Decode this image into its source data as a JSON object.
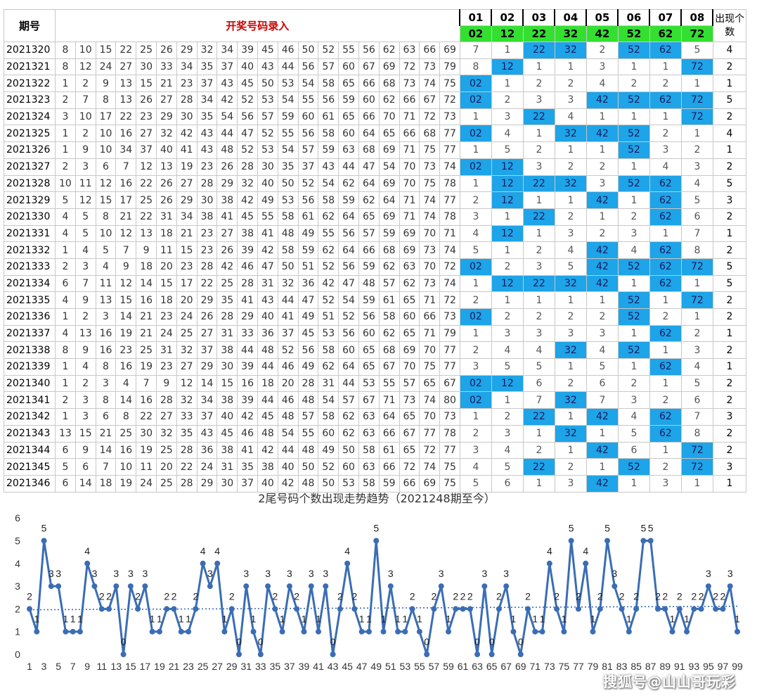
{
  "table": {
    "header": {
      "period_label": "期号",
      "entry_label": "开奖号码录入",
      "col_labels": [
        "01",
        "02",
        "03",
        "04",
        "05",
        "06",
        "07",
        "08"
      ],
      "targets": [
        "02",
        "12",
        "22",
        "32",
        "42",
        "52",
        "62",
        "72"
      ],
      "count_label": "出现个数"
    },
    "colors": {
      "hit": "#1ea4e8",
      "target_bg": "#33e030",
      "entry_label": "#cc0000"
    },
    "rows": [
      {
        "period": "2021320",
        "nums": [
          "8",
          "10",
          "15",
          "22",
          "25",
          "26",
          "29",
          "32",
          "34",
          "39",
          "45",
          "46",
          "50",
          "52",
          "55",
          "56",
          "62",
          "63",
          "66",
          "69"
        ],
        "cells": [
          "7",
          "1",
          "22",
          "32",
          "2",
          "52",
          "62",
          "5"
        ],
        "count": "4"
      },
      {
        "period": "2021321",
        "nums": [
          "8",
          "12",
          "24",
          "27",
          "30",
          "33",
          "34",
          "35",
          "37",
          "40",
          "43",
          "44",
          "56",
          "57",
          "60",
          "67",
          "69",
          "72",
          "73",
          "79"
        ],
        "cells": [
          "8",
          "12",
          "1",
          "1",
          "3",
          "1",
          "1",
          "72"
        ],
        "count": "2"
      },
      {
        "period": "2021322",
        "nums": [
          "1",
          "2",
          "9",
          "13",
          "15",
          "21",
          "23",
          "37",
          "43",
          "45",
          "50",
          "53",
          "54",
          "58",
          "65",
          "66",
          "68",
          "73",
          "74",
          "75"
        ],
        "cells": [
          "02",
          "1",
          "2",
          "2",
          "4",
          "2",
          "2",
          "1"
        ],
        "count": "1"
      },
      {
        "period": "2021323",
        "nums": [
          "2",
          "7",
          "8",
          "13",
          "26",
          "27",
          "28",
          "34",
          "42",
          "52",
          "53",
          "54",
          "55",
          "56",
          "59",
          "60",
          "62",
          "66",
          "67",
          "72"
        ],
        "cells": [
          "02",
          "2",
          "3",
          "3",
          "42",
          "52",
          "62",
          "72"
        ],
        "count": "5"
      },
      {
        "period": "2021324",
        "nums": [
          "3",
          "10",
          "17",
          "22",
          "23",
          "29",
          "30",
          "35",
          "54",
          "56",
          "57",
          "59",
          "60",
          "61",
          "65",
          "66",
          "70",
          "71",
          "72",
          "73"
        ],
        "cells": [
          "1",
          "3",
          "22",
          "4",
          "1",
          "1",
          "1",
          "72"
        ],
        "count": "2"
      },
      {
        "period": "2021325",
        "nums": [
          "1",
          "2",
          "10",
          "16",
          "27",
          "32",
          "42",
          "43",
          "44",
          "47",
          "52",
          "55",
          "56",
          "58",
          "60",
          "64",
          "65",
          "66",
          "68",
          "77"
        ],
        "cells": [
          "02",
          "4",
          "1",
          "32",
          "42",
          "52",
          "2",
          "1"
        ],
        "count": "4"
      },
      {
        "period": "2021326",
        "nums": [
          "1",
          "9",
          "10",
          "34",
          "37",
          "40",
          "41",
          "43",
          "48",
          "52",
          "53",
          "54",
          "57",
          "59",
          "63",
          "68",
          "69",
          "71",
          "75",
          "77"
        ],
        "cells": [
          "1",
          "5",
          "2",
          "1",
          "1",
          "52",
          "3",
          "2"
        ],
        "count": "1"
      },
      {
        "period": "2021327",
        "nums": [
          "2",
          "3",
          "6",
          "7",
          "12",
          "13",
          "19",
          "23",
          "26",
          "28",
          "30",
          "35",
          "37",
          "43",
          "44",
          "47",
          "54",
          "70",
          "73",
          "74"
        ],
        "cells": [
          "02",
          "12",
          "3",
          "2",
          "2",
          "1",
          "4",
          "3"
        ],
        "count": "2"
      },
      {
        "period": "2021328",
        "nums": [
          "10",
          "11",
          "12",
          "16",
          "22",
          "26",
          "27",
          "28",
          "29",
          "32",
          "40",
          "50",
          "52",
          "54",
          "62",
          "64",
          "69",
          "70",
          "75",
          "78"
        ],
        "cells": [
          "1",
          "12",
          "22",
          "32",
          "3",
          "52",
          "62",
          "4"
        ],
        "count": "5"
      },
      {
        "period": "2021329",
        "nums": [
          "5",
          "12",
          "15",
          "17",
          "25",
          "26",
          "29",
          "30",
          "38",
          "42",
          "49",
          "53",
          "56",
          "58",
          "59",
          "62",
          "64",
          "71",
          "74",
          "77"
        ],
        "cells": [
          "2",
          "12",
          "1",
          "1",
          "42",
          "1",
          "62",
          "5"
        ],
        "count": "3"
      },
      {
        "period": "2021330",
        "nums": [
          "4",
          "5",
          "8",
          "21",
          "22",
          "31",
          "34",
          "38",
          "41",
          "45",
          "55",
          "58",
          "61",
          "62",
          "64",
          "65",
          "69",
          "71",
          "74",
          "78"
        ],
        "cells": [
          "3",
          "1",
          "22",
          "2",
          "1",
          "2",
          "62",
          "6"
        ],
        "count": "2"
      },
      {
        "period": "2021331",
        "nums": [
          "4",
          "5",
          "10",
          "12",
          "13",
          "18",
          "21",
          "23",
          "27",
          "38",
          "41",
          "48",
          "49",
          "55",
          "56",
          "57",
          "59",
          "69",
          "70",
          "71"
        ],
        "cells": [
          "4",
          "12",
          "1",
          "3",
          "2",
          "3",
          "1",
          "7"
        ],
        "count": "1"
      },
      {
        "period": "2021332",
        "nums": [
          "1",
          "4",
          "5",
          "7",
          "9",
          "11",
          "15",
          "23",
          "26",
          "39",
          "42",
          "58",
          "59",
          "62",
          "64",
          "66",
          "68",
          "69",
          "73",
          "74"
        ],
        "cells": [
          "5",
          "1",
          "2",
          "4",
          "42",
          "4",
          "62",
          "8"
        ],
        "count": "2"
      },
      {
        "period": "2021333",
        "nums": [
          "2",
          "3",
          "4",
          "9",
          "18",
          "20",
          "23",
          "28",
          "42",
          "46",
          "47",
          "50",
          "51",
          "52",
          "56",
          "59",
          "62",
          "63",
          "70",
          "72"
        ],
        "cells": [
          "02",
          "2",
          "3",
          "5",
          "42",
          "52",
          "62",
          "72"
        ],
        "count": "5"
      },
      {
        "period": "2021334",
        "nums": [
          "6",
          "7",
          "11",
          "12",
          "14",
          "15",
          "17",
          "22",
          "25",
          "28",
          "31",
          "32",
          "36",
          "42",
          "47",
          "48",
          "57",
          "62",
          "73",
          "74"
        ],
        "cells": [
          "1",
          "12",
          "22",
          "32",
          "42",
          "1",
          "62",
          "1"
        ],
        "count": "5"
      },
      {
        "period": "2021335",
        "nums": [
          "4",
          "9",
          "13",
          "15",
          "16",
          "18",
          "20",
          "29",
          "35",
          "41",
          "43",
          "44",
          "47",
          "52",
          "54",
          "59",
          "61",
          "65",
          "71",
          "72"
        ],
        "cells": [
          "2",
          "1",
          "1",
          "1",
          "1",
          "52",
          "1",
          "72"
        ],
        "count": "2"
      },
      {
        "period": "2021336",
        "nums": [
          "1",
          "2",
          "3",
          "14",
          "21",
          "23",
          "24",
          "26",
          "28",
          "29",
          "40",
          "41",
          "49",
          "51",
          "52",
          "56",
          "58",
          "60",
          "66",
          "73"
        ],
        "cells": [
          "02",
          "2",
          "2",
          "2",
          "2",
          "52",
          "2",
          "1"
        ],
        "count": "2"
      },
      {
        "period": "2021337",
        "nums": [
          "4",
          "13",
          "16",
          "19",
          "21",
          "24",
          "25",
          "27",
          "31",
          "33",
          "36",
          "37",
          "45",
          "53",
          "56",
          "60",
          "62",
          "65",
          "71",
          "79"
        ],
        "cells": [
          "1",
          "3",
          "3",
          "3",
          "3",
          "1",
          "62",
          "2"
        ],
        "count": "1"
      },
      {
        "period": "2021338",
        "nums": [
          "8",
          "9",
          "16",
          "23",
          "25",
          "31",
          "32",
          "37",
          "38",
          "44",
          "48",
          "52",
          "56",
          "58",
          "60",
          "65",
          "68",
          "69",
          "70",
          "77"
        ],
        "cells": [
          "2",
          "4",
          "4",
          "32",
          "4",
          "52",
          "1",
          "3"
        ],
        "count": "2"
      },
      {
        "period": "2021339",
        "nums": [
          "1",
          "4",
          "8",
          "16",
          "19",
          "23",
          "27",
          "29",
          "30",
          "39",
          "44",
          "46",
          "49",
          "62",
          "64",
          "65",
          "67",
          "70",
          "75",
          "77"
        ],
        "cells": [
          "3",
          "5",
          "5",
          "1",
          "5",
          "1",
          "62",
          "4"
        ],
        "count": "1"
      },
      {
        "period": "2021340",
        "nums": [
          "1",
          "2",
          "3",
          "4",
          "7",
          "9",
          "12",
          "14",
          "15",
          "16",
          "18",
          "20",
          "28",
          "31",
          "44",
          "53",
          "55",
          "57",
          "65",
          "67"
        ],
        "cells": [
          "02",
          "12",
          "6",
          "2",
          "6",
          "2",
          "1",
          "5"
        ],
        "count": "2"
      },
      {
        "period": "2021341",
        "nums": [
          "2",
          "3",
          "8",
          "14",
          "16",
          "28",
          "32",
          "34",
          "38",
          "39",
          "44",
          "46",
          "48",
          "54",
          "57",
          "67",
          "71",
          "73",
          "74",
          "80"
        ],
        "cells": [
          "02",
          "1",
          "7",
          "32",
          "7",
          "3",
          "2",
          "6"
        ],
        "count": "2"
      },
      {
        "period": "2021342",
        "nums": [
          "1",
          "3",
          "6",
          "8",
          "22",
          "27",
          "33",
          "37",
          "40",
          "42",
          "45",
          "48",
          "57",
          "58",
          "62",
          "63",
          "64",
          "65",
          "70",
          "73"
        ],
        "cells": [
          "1",
          "2",
          "22",
          "1",
          "42",
          "4",
          "62",
          "7"
        ],
        "count": "3"
      },
      {
        "period": "2021343",
        "nums": [
          "13",
          "15",
          "21",
          "25",
          "30",
          "32",
          "35",
          "43",
          "45",
          "46",
          "48",
          "54",
          "55",
          "60",
          "62",
          "63",
          "66",
          "67",
          "77",
          "78"
        ],
        "cells": [
          "2",
          "3",
          "1",
          "32",
          "1",
          "5",
          "62",
          "8"
        ],
        "count": "2"
      },
      {
        "period": "2021344",
        "nums": [
          "6",
          "9",
          "14",
          "16",
          "19",
          "25",
          "28",
          "36",
          "38",
          "41",
          "42",
          "44",
          "48",
          "49",
          "50",
          "58",
          "61",
          "65",
          "72",
          "77"
        ],
        "cells": [
          "3",
          "4",
          "2",
          "1",
          "42",
          "6",
          "1",
          "72"
        ],
        "count": "2"
      },
      {
        "period": "2021345",
        "nums": [
          "5",
          "6",
          "7",
          "10",
          "11",
          "20",
          "22",
          "24",
          "31",
          "35",
          "38",
          "40",
          "50",
          "52",
          "60",
          "63",
          "66",
          "72",
          "74",
          "75"
        ],
        "cells": [
          "4",
          "5",
          "22",
          "2",
          "1",
          "52",
          "2",
          "72"
        ],
        "count": "3"
      },
      {
        "period": "2021346",
        "nums": [
          "6",
          "14",
          "18",
          "19",
          "24",
          "25",
          "28",
          "29",
          "30",
          "37",
          "40",
          "42",
          "48",
          "50",
          "53",
          "58",
          "59",
          "66",
          "69",
          "75"
        ],
        "cells": [
          "5",
          "6",
          "1",
          "3",
          "42",
          "1",
          "3",
          "1"
        ],
        "count": "1"
      }
    ]
  },
  "chart": {
    "title": "2尾号码个数出现走势趋势（2021248期至今）",
    "line_color": "#3a6db5",
    "trend_color": "#3a6db5"
  },
  "chart_data": {
    "type": "line",
    "title": "2尾号码个数出现走势趋势（2021248期至今）",
    "x": [
      1,
      2,
      3,
      4,
      5,
      6,
      7,
      8,
      9,
      10,
      11,
      12,
      13,
      14,
      15,
      16,
      17,
      18,
      19,
      20,
      21,
      22,
      23,
      24,
      25,
      26,
      27,
      28,
      29,
      30,
      31,
      32,
      33,
      34,
      35,
      36,
      37,
      38,
      39,
      40,
      41,
      42,
      43,
      44,
      45,
      46,
      47,
      48,
      49,
      50,
      51,
      52,
      53,
      54,
      55,
      56,
      57,
      58,
      59,
      60,
      61,
      62,
      63,
      64,
      65,
      66,
      67,
      68,
      69,
      70,
      71,
      72,
      73,
      74,
      75,
      76,
      77,
      78,
      79,
      80,
      81,
      82,
      83,
      84,
      85,
      86,
      87,
      88,
      89,
      90,
      91,
      92,
      93,
      94,
      95,
      96,
      97,
      98,
      99
    ],
    "x_tick_labels": [
      "1",
      "3",
      "5",
      "7",
      "9",
      "11",
      "13",
      "15",
      "17",
      "19",
      "21",
      "23",
      "25",
      "27",
      "29",
      "31",
      "33",
      "35",
      "37",
      "39",
      "41",
      "43",
      "45",
      "47",
      "49",
      "51",
      "53",
      "55",
      "57",
      "59",
      "61",
      "63",
      "65",
      "67",
      "69",
      "71",
      "73",
      "75",
      "77",
      "79",
      "81",
      "83",
      "85",
      "87",
      "89",
      "91",
      "93",
      "95",
      "97",
      "99"
    ],
    "series": [
      {
        "values": [
          2,
          1,
          5,
          3,
          3,
          1,
          1,
          1,
          4,
          3,
          2,
          2,
          3,
          0,
          3,
          2,
          3,
          1,
          1,
          2,
          2,
          1,
          1,
          2,
          4,
          3,
          4,
          1,
          2,
          0,
          3,
          1,
          0,
          3,
          2,
          1,
          3,
          2,
          1,
          3,
          1,
          3,
          0,
          2,
          4,
          2,
          1,
          1,
          5,
          1,
          3,
          1,
          1,
          2,
          1,
          0,
          2,
          3,
          1,
          2,
          2,
          2,
          0,
          3,
          0,
          2,
          3,
          1,
          0,
          2,
          1,
          1,
          4,
          2,
          1,
          5,
          2,
          4,
          1,
          2,
          5,
          3,
          2,
          1,
          2,
          5,
          5,
          2,
          2,
          1,
          2,
          1,
          2,
          2,
          3,
          2,
          2,
          3,
          1
        ]
      }
    ],
    "trendline": "linear (dotted)",
    "ylim": [
      0,
      6
    ],
    "y_ticks": [
      0,
      1,
      2,
      3,
      4,
      5,
      6
    ],
    "data_labels": true,
    "grid": false,
    "legend": "none"
  },
  "watermark": "搜狐号@山山哥玩彩"
}
